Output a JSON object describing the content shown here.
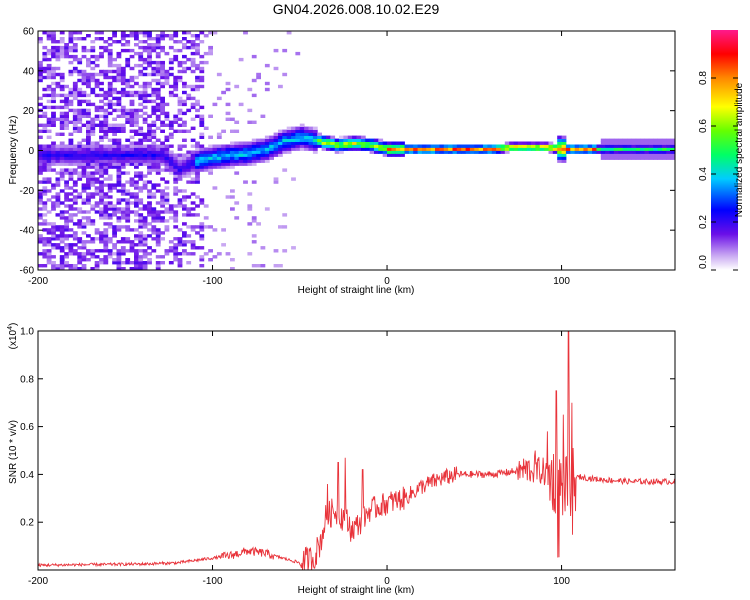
{
  "title": "GN04.2026.008.10.02.E29",
  "chart_data": [
    {
      "type": "heatmap",
      "name": "spectrogram",
      "xlabel": "Height of straight line (km)",
      "ylabel": "Frequency (Hz)",
      "xlim": [
        -200,
        165
      ],
      "ylim": [
        -60,
        60
      ],
      "xticks": [
        -200,
        -100,
        0,
        100
      ],
      "yticks": [
        -60,
        -40,
        -20,
        0,
        20,
        40,
        60
      ],
      "colorbar": {
        "label": "Normalized spectral amplitude",
        "range": [
          0,
          1
        ],
        "ticks": [
          0.0,
          0.2,
          0.4,
          0.6,
          0.8
        ]
      },
      "ridge": {
        "description": "frequency centroid of the signal band",
        "x": [
          -130,
          -120,
          -110,
          -100,
          -90,
          -80,
          -70,
          -60,
          -50,
          -40,
          -30,
          -20,
          -10,
          0,
          10,
          20,
          40,
          60,
          70,
          80,
          90,
          100,
          120,
          140,
          165
        ],
        "y": [
          -3,
          -10,
          -6,
          -4,
          -3,
          -2,
          0,
          4,
          6,
          4,
          2,
          3,
          2,
          0,
          0,
          0,
          0,
          0,
          1,
          1,
          1,
          0,
          0,
          0,
          0
        ]
      }
    },
    {
      "type": "line",
      "name": "snr",
      "xlabel": "Height of straight line (km)",
      "ylabel": "SNR (10 * v/v)",
      "yscale_label": "(x10",
      "yscale_exp": "4",
      "xlim": [
        -200,
        165
      ],
      "ylim": [
        0,
        1.0
      ],
      "xticks": [
        -200,
        -100,
        0,
        100
      ],
      "yticks": [
        0.2,
        0.4,
        0.6,
        0.8,
        1.0
      ],
      "color": "#e8333a",
      "envelope": {
        "x": [
          -200,
          -140,
          -120,
          -100,
          -90,
          -80,
          -70,
          -60,
          -50,
          -42,
          -38,
          -35,
          -30,
          -25,
          -20,
          -15,
          -10,
          0,
          10,
          20,
          30,
          40,
          50,
          60,
          70,
          80,
          85,
          90,
          95,
          100,
          103,
          105,
          108,
          110,
          120,
          140,
          165
        ],
        "y": [
          0.02,
          0.025,
          0.03,
          0.05,
          0.06,
          0.08,
          0.07,
          0.05,
          0.03,
          0.05,
          0.12,
          0.22,
          0.25,
          0.22,
          0.17,
          0.2,
          0.25,
          0.28,
          0.3,
          0.35,
          0.38,
          0.4,
          0.4,
          0.4,
          0.41,
          0.42,
          0.42,
          0.41,
          0.38,
          0.35,
          0.34,
          0.36,
          0.38,
          0.39,
          0.38,
          0.37,
          0.37
        ]
      },
      "spikes": [
        {
          "x": -34,
          "y": 0.36
        },
        {
          "x": -28,
          "y": 0.45
        },
        {
          "x": -24,
          "y": 0.47
        },
        {
          "x": -14,
          "y": 0.42
        },
        {
          "x": 85,
          "y": 0.5
        },
        {
          "x": 92,
          "y": 0.58
        },
        {
          "x": 97,
          "y": 0.75
        },
        {
          "x": 101,
          "y": 0.65
        },
        {
          "x": 104,
          "y": 1.0
        },
        {
          "x": 106,
          "y": 0.7
        }
      ]
    }
  ]
}
